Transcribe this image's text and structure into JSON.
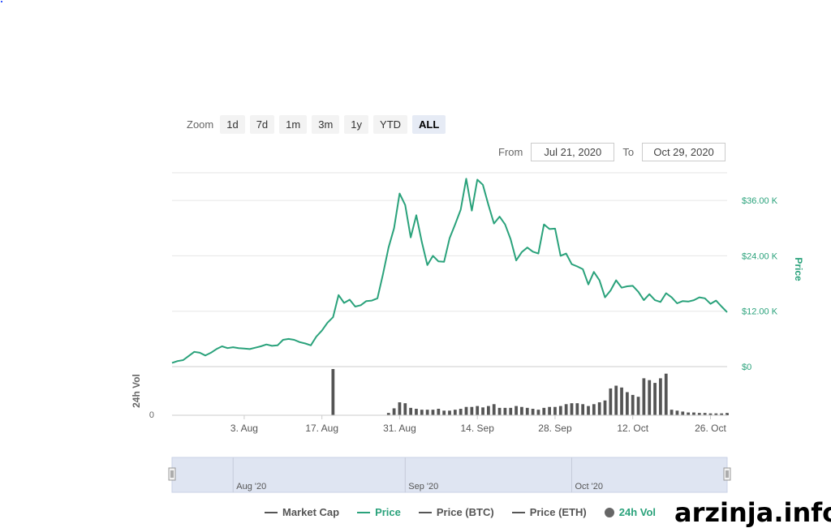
{
  "zoom": {
    "label": "Zoom",
    "buttons": [
      "1d",
      "7d",
      "1m",
      "3m",
      "1y",
      "YTD",
      "ALL"
    ],
    "active": "ALL"
  },
  "range": {
    "from_label": "From",
    "from_value": "Jul 21, 2020",
    "to_label": "To",
    "to_value": "Oct 29, 2020"
  },
  "watermark": "arzinja.info",
  "colors": {
    "price": "#2aa27b",
    "volume": "#555555",
    "navigator": "#dfe5f2"
  },
  "chart_data": {
    "type": "line",
    "price_axis": {
      "label": "Price",
      "ticks": [
        "$0",
        "$12.00 K",
        "$24.00 K",
        "$36.00 K"
      ],
      "tick_values": [
        0,
        12000,
        24000,
        36000
      ],
      "range": [
        0,
        42000
      ]
    },
    "volume_axis": {
      "label": "24h Vol",
      "ticks": [
        "0"
      ]
    },
    "x_axis": {
      "ticks": [
        "3. Aug",
        "17. Aug",
        "31. Aug",
        "14. Sep",
        "28. Sep",
        "12. Oct",
        "26. Oct"
      ],
      "tick_days": [
        13,
        27,
        41,
        55,
        69,
        83,
        97
      ],
      "start": "2020-07-21",
      "end": "2020-10-29"
    },
    "navigator_labels": [
      "Aug '20",
      "Sep '20",
      "Oct '20"
    ],
    "navigator_label_days": [
      11,
      42,
      72
    ],
    "series": [
      {
        "name": "Price",
        "points": [
          [
            0,
            800
          ],
          [
            1,
            1200
          ],
          [
            2,
            1400
          ],
          [
            3,
            2300
          ],
          [
            4,
            3200
          ],
          [
            5,
            3000
          ],
          [
            6,
            2400
          ],
          [
            7,
            3000
          ],
          [
            8,
            3800
          ],
          [
            9,
            4400
          ],
          [
            10,
            4000
          ],
          [
            11,
            4200
          ],
          [
            12,
            4000
          ],
          [
            13,
            3900
          ],
          [
            14,
            3800
          ],
          [
            15,
            4100
          ],
          [
            16,
            4400
          ],
          [
            17,
            4800
          ],
          [
            18,
            4500
          ],
          [
            19,
            4600
          ],
          [
            20,
            5800
          ],
          [
            21,
            6000
          ],
          [
            22,
            5800
          ],
          [
            23,
            5300
          ],
          [
            24,
            5000
          ],
          [
            25,
            4600
          ],
          [
            26,
            6500
          ],
          [
            27,
            7800
          ],
          [
            28,
            9500
          ],
          [
            29,
            10700
          ],
          [
            30,
            15500
          ],
          [
            31,
            13800
          ],
          [
            32,
            14500
          ],
          [
            33,
            13000
          ],
          [
            34,
            13300
          ],
          [
            35,
            14200
          ],
          [
            36,
            14300
          ],
          [
            37,
            14800
          ],
          [
            38,
            20000
          ],
          [
            39,
            25800
          ],
          [
            40,
            30000
          ],
          [
            41,
            37500
          ],
          [
            42,
            35000
          ],
          [
            43,
            28000
          ],
          [
            44,
            32800
          ],
          [
            45,
            27000
          ],
          [
            46,
            22000
          ],
          [
            47,
            24000
          ],
          [
            48,
            22800
          ],
          [
            49,
            22700
          ],
          [
            50,
            27800
          ],
          [
            51,
            30800
          ],
          [
            52,
            34000
          ],
          [
            53,
            40700
          ],
          [
            54,
            33800
          ],
          [
            55,
            40500
          ],
          [
            56,
            39400
          ],
          [
            57,
            35000
          ],
          [
            58,
            31000
          ],
          [
            59,
            32500
          ],
          [
            60,
            30800
          ],
          [
            61,
            27600
          ],
          [
            62,
            23000
          ],
          [
            63,
            24800
          ],
          [
            64,
            25800
          ],
          [
            65,
            24900
          ],
          [
            66,
            24500
          ],
          [
            67,
            30800
          ],
          [
            68,
            29800
          ],
          [
            69,
            29900
          ],
          [
            70,
            24000
          ],
          [
            71,
            24500
          ],
          [
            72,
            22200
          ],
          [
            73,
            21700
          ],
          [
            74,
            21100
          ],
          [
            75,
            17800
          ],
          [
            76,
            20500
          ],
          [
            77,
            18700
          ],
          [
            78,
            15000
          ],
          [
            79,
            16500
          ],
          [
            80,
            18700
          ],
          [
            81,
            17100
          ],
          [
            82,
            17400
          ],
          [
            83,
            17500
          ],
          [
            84,
            16200
          ],
          [
            85,
            14400
          ],
          [
            86,
            15700
          ],
          [
            87,
            14400
          ],
          [
            88,
            14000
          ],
          [
            89,
            15900
          ],
          [
            90,
            15000
          ],
          [
            91,
            13700
          ],
          [
            92,
            14200
          ],
          [
            93,
            14100
          ],
          [
            94,
            14400
          ],
          [
            95,
            15000
          ],
          [
            96,
            14800
          ],
          [
            97,
            13600
          ],
          [
            98,
            14300
          ],
          [
            99,
            13000
          ],
          [
            100,
            11800
          ]
        ]
      },
      {
        "name": "24h Vol",
        "values": [
          0,
          0,
          0,
          0,
          0,
          0,
          0,
          0,
          0,
          0,
          0,
          0,
          0,
          0,
          0,
          0,
          0,
          0,
          0,
          0,
          0,
          0,
          0,
          0,
          0,
          0,
          0,
          0,
          0,
          1,
          0,
          0,
          0,
          0,
          0,
          0,
          0,
          0,
          0,
          0.05,
          0.15,
          0.28,
          0.26,
          0.16,
          0.14,
          0.12,
          0.12,
          0.12,
          0.14,
          0.1,
          0.1,
          0.12,
          0.14,
          0.18,
          0.18,
          0.2,
          0.17,
          0.2,
          0.24,
          0.16,
          0.16,
          0.16,
          0.2,
          0.18,
          0.16,
          0.14,
          0.12,
          0.16,
          0.18,
          0.18,
          0.2,
          0.24,
          0.26,
          0.26,
          0.24,
          0.2,
          0.24,
          0.28,
          0.32,
          0.58,
          0.64,
          0.6,
          0.5,
          0.44,
          0.4,
          0.8,
          0.76,
          0.7,
          0.8,
          0.9,
          0.12,
          0.1,
          0.08,
          0.06,
          0.06,
          0.05,
          0.05,
          0.04,
          0.04,
          0.04,
          0.05
        ]
      }
    ]
  }
}
